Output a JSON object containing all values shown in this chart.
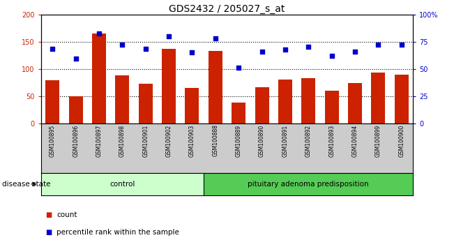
{
  "title": "GDS2432 / 205027_s_at",
  "samples": [
    "GSM100895",
    "GSM100896",
    "GSM100897",
    "GSM100898",
    "GSM100901",
    "GSM100902",
    "GSM100903",
    "GSM100888",
    "GSM100889",
    "GSM100890",
    "GSM100891",
    "GSM100892",
    "GSM100893",
    "GSM100894",
    "GSM100899",
    "GSM100900"
  ],
  "counts": [
    79,
    50,
    165,
    89,
    73,
    138,
    65,
    134,
    38,
    67,
    81,
    84,
    60,
    74,
    94,
    90
  ],
  "percentiles": [
    138,
    120,
    166,
    145,
    138,
    160,
    131,
    157,
    103,
    132,
    136,
    141,
    125,
    132,
    145,
    145
  ],
  "bar_color": "#cc2200",
  "dot_color": "#0000cc",
  "ylim_left": [
    0,
    200
  ],
  "ylim_right": [
    0,
    200
  ],
  "right_ticks": [
    0,
    50,
    100,
    150,
    200
  ],
  "right_tick_labels": [
    "0",
    "25",
    "50",
    "75",
    "100%"
  ],
  "left_ticks": [
    0,
    50,
    100,
    150,
    200
  ],
  "left_tick_labels": [
    "0",
    "50",
    "100",
    "150",
    "200"
  ],
  "dotted_lines": [
    50,
    100,
    150
  ],
  "control_count": 7,
  "disease_count": 9,
  "control_label": "control",
  "disease_label": "pituitary adenoma predisposition",
  "disease_state_label": "disease state",
  "control_color": "#ccffcc",
  "disease_color": "#55cc55",
  "legend_count_label": "count",
  "legend_pct_label": "percentile rank within the sample",
  "background_color": "#ffffff",
  "plot_bg": "#ffffff",
  "tick_area_bg": "#cccccc",
  "fontsize_title": 10,
  "fontsize_tick": 7,
  "fontsize_sample": 5.5,
  "fontsize_label": 7.5
}
